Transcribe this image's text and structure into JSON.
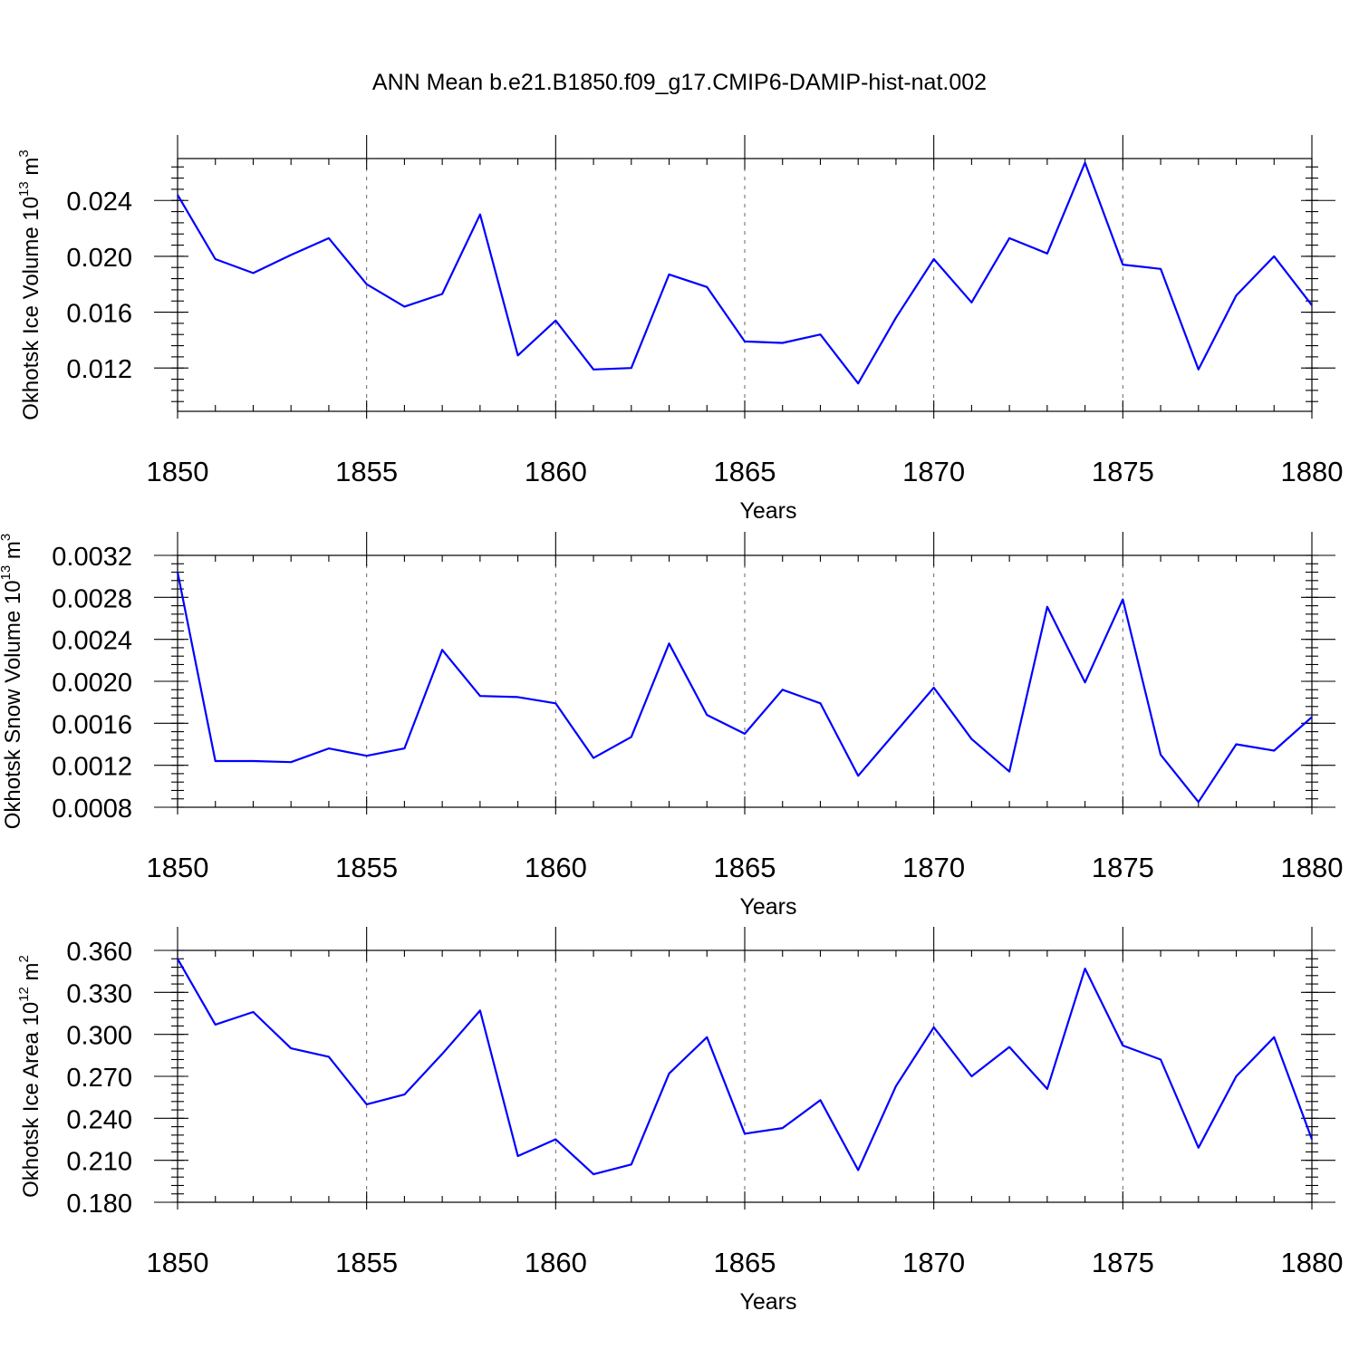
{
  "title": "ANN Mean b.e21.B1850.f09_g17.CMIP6-DAMIP-hist-nat.002",
  "line_color": "#0000ff",
  "chart_data": [
    {
      "type": "line",
      "ylabel_text": "Okhotsk Ice Volume 10",
      "ylabel_exp": "13",
      "ylabel_unit": " m",
      "ylabel_unit_exp": "3",
      "xlabel": "Years",
      "xlim": [
        1850,
        1880
      ],
      "ylim": [
        0.0089,
        0.027
      ],
      "x_ticks": [
        "1850",
        "1855",
        "1860",
        "1865",
        "1870",
        "1875",
        "1880"
      ],
      "y_ticks": [
        "0.012",
        "0.016",
        "0.020",
        "0.024"
      ],
      "y_tick_values": [
        0.012,
        0.016,
        0.02,
        0.024
      ],
      "y_minor_step": 0.0008,
      "x": [
        1850,
        1851,
        1852,
        1853,
        1854,
        1855,
        1856,
        1857,
        1858,
        1859,
        1860,
        1861,
        1862,
        1863,
        1864,
        1865,
        1866,
        1867,
        1868,
        1869,
        1870,
        1871,
        1872,
        1873,
        1874,
        1875,
        1876,
        1877,
        1878,
        1879,
        1880
      ],
      "values": [
        0.0244,
        0.0198,
        0.0188,
        0.0201,
        0.0213,
        0.018,
        0.0164,
        0.0173,
        0.023,
        0.0129,
        0.0154,
        0.0119,
        0.012,
        0.0187,
        0.0178,
        0.0139,
        0.0138,
        0.0144,
        0.0109,
        0.0156,
        0.0198,
        0.0167,
        0.0213,
        0.0202,
        0.0267,
        0.0194,
        0.0191,
        0.0119,
        0.0172,
        0.02,
        0.0165
      ]
    },
    {
      "type": "line",
      "ylabel_text": "Okhotsk Snow Volume 10",
      "ylabel_exp": "13",
      "ylabel_unit": " m",
      "ylabel_unit_exp": "3",
      "xlabel": "Years",
      "xlim": [
        1850,
        1880
      ],
      "ylim": [
        0.0008,
        0.0032
      ],
      "x_ticks": [
        "1850",
        "1855",
        "1860",
        "1865",
        "1870",
        "1875",
        "1880"
      ],
      "y_ticks": [
        "0.0008",
        "0.0012",
        "0.0016",
        "0.0020",
        "0.0024",
        "0.0028",
        "0.0032"
      ],
      "y_tick_values": [
        0.0008,
        0.0012,
        0.0016,
        0.002,
        0.0024,
        0.0028,
        0.0032
      ],
      "y_minor_step": 8e-05,
      "x": [
        1850,
        1851,
        1852,
        1853,
        1854,
        1855,
        1856,
        1857,
        1858,
        1859,
        1860,
        1861,
        1862,
        1863,
        1864,
        1865,
        1866,
        1867,
        1868,
        1869,
        1870,
        1871,
        1872,
        1873,
        1874,
        1875,
        1876,
        1877,
        1878,
        1879,
        1880
      ],
      "values": [
        0.00304,
        0.00124,
        0.00124,
        0.00123,
        0.00136,
        0.00129,
        0.00136,
        0.0023,
        0.00186,
        0.00185,
        0.00179,
        0.00127,
        0.00147,
        0.00236,
        0.00168,
        0.0015,
        0.00192,
        0.00179,
        0.0011,
        0.00152,
        0.00194,
        0.00145,
        0.00114,
        0.00271,
        0.00199,
        0.00278,
        0.0013,
        0.00085,
        0.0014,
        0.00134,
        0.00166
      ]
    },
    {
      "type": "line",
      "ylabel_text": "Okhotsk Ice Area 10",
      "ylabel_exp": "12",
      "ylabel_unit": " m",
      "ylabel_unit_exp": "2",
      "xlabel": "Years",
      "xlim": [
        1850,
        1880
      ],
      "ylim": [
        0.18,
        0.36
      ],
      "x_ticks": [
        "1850",
        "1855",
        "1860",
        "1865",
        "1870",
        "1875",
        "1880"
      ],
      "y_ticks": [
        "0.180",
        "0.210",
        "0.240",
        "0.270",
        "0.300",
        "0.330",
        "0.360"
      ],
      "y_tick_values": [
        0.18,
        0.21,
        0.24,
        0.27,
        0.3,
        0.33,
        0.36
      ],
      "y_minor_step": 0.006,
      "x": [
        1850,
        1851,
        1852,
        1853,
        1854,
        1855,
        1856,
        1857,
        1858,
        1859,
        1860,
        1861,
        1862,
        1863,
        1864,
        1865,
        1866,
        1867,
        1868,
        1869,
        1870,
        1871,
        1872,
        1873,
        1874,
        1875,
        1876,
        1877,
        1878,
        1879,
        1880
      ],
      "values": [
        0.354,
        0.307,
        0.316,
        0.29,
        0.284,
        0.25,
        0.257,
        0.286,
        0.317,
        0.213,
        0.225,
        0.2,
        0.207,
        0.272,
        0.298,
        0.229,
        0.233,
        0.253,
        0.203,
        0.263,
        0.305,
        0.27,
        0.291,
        0.261,
        0.347,
        0.292,
        0.282,
        0.219,
        0.27,
        0.298,
        0.225
      ]
    }
  ]
}
